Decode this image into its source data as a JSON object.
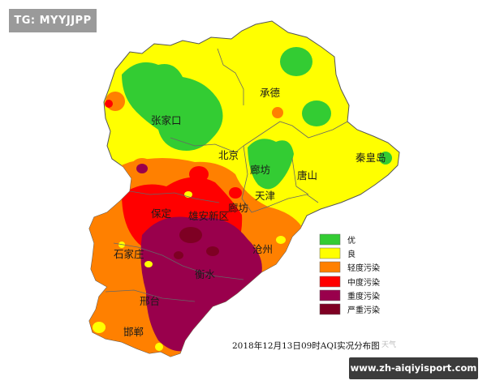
{
  "tag_label": "TG: MYYJJPP",
  "cities": [
    {
      "name": "承德"
    },
    {
      "name": "张家口"
    },
    {
      "name": "北京"
    },
    {
      "name": "廊坊"
    },
    {
      "name": "唐山"
    },
    {
      "name": "秦皇岛"
    },
    {
      "name": "天津"
    },
    {
      "name": "保定"
    },
    {
      "name": "雄安新区"
    },
    {
      "name": "廊坊"
    },
    {
      "name": "沧州"
    },
    {
      "name": "石家庄"
    },
    {
      "name": "衡水"
    },
    {
      "name": "邢台"
    },
    {
      "name": "邯郸"
    }
  ],
  "legend": [
    {
      "label": "优",
      "color": "#33cc33"
    },
    {
      "label": "良",
      "color": "#ffff00"
    },
    {
      "label": "轻度污染",
      "color": "#ff8000"
    },
    {
      "label": "中度污染",
      "color": "#ff0000"
    },
    {
      "label": "重度污染",
      "color": "#99004c"
    },
    {
      "label": "严重污染",
      "color": "#7e0023"
    }
  ],
  "caption": "2018年12月13日09时AQI实况分布图",
  "faint_watermark": "天气",
  "website": "www.zh-aiqiyisport.com"
}
